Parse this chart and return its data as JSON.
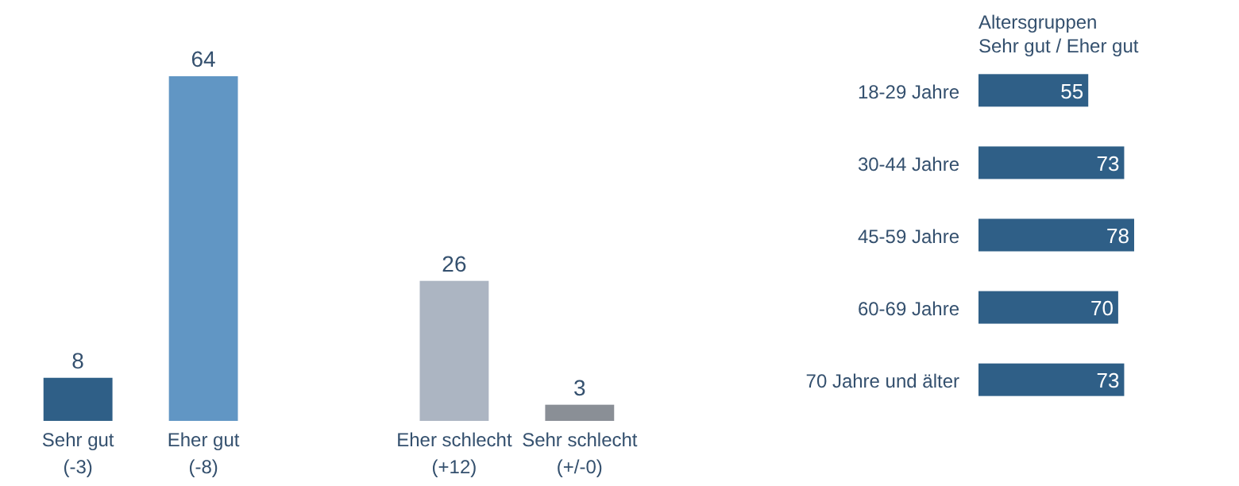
{
  "chart_data": [
    {
      "type": "bar",
      "categories": [
        "Sehr gut\n(-3)",
        "Eher gut\n(-8)",
        null,
        "Eher schlecht\n(+12)",
        "Sehr schlecht\n(+/-0)"
      ],
      "values": [
        8,
        64,
        null,
        26,
        3
      ],
      "colors": [
        "#2f5f87",
        "#6196c4",
        null,
        "#acb5c2",
        "#8a8f96"
      ],
      "data_labels": true
    },
    {
      "type": "bar",
      "orientation": "horizontal",
      "title": "Altersgruppen\nSehr gut / Eher gut",
      "categories": [
        "18-29 Jahre",
        "30-44 Jahre",
        "45-59 Jahre",
        "60-69 Jahre",
        "70 Jahre und älter"
      ],
      "values": [
        55,
        73,
        78,
        70,
        73
      ],
      "color": "#2f5f87",
      "data_labels": true
    }
  ]
}
